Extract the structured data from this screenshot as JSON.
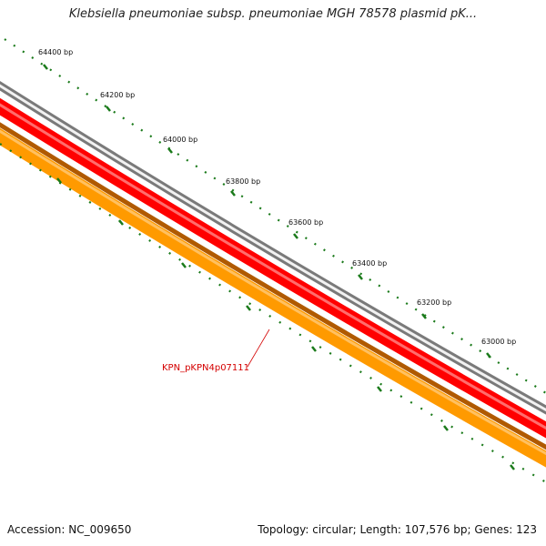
{
  "title": "Klebsiella pneumoniae subsp. pneumoniae MGH 78578 plasmid pK...",
  "ruler": {
    "tick_labels": [
      "64400 bp",
      "64200 bp",
      "64000 bp",
      "63800 bp",
      "63600 bp",
      "63400 bp",
      "63200 bp",
      "63000 bp"
    ]
  },
  "feature": {
    "label": "KPN_pKPN4p07111"
  },
  "footer": {
    "accession": "Accession: NC_009650",
    "summary": "Topology: circular; Length: 107,576 bp; Genes: 123"
  },
  "colors": {
    "backbone": "#7a7a7a",
    "feature_strand_fill": "#ff0000",
    "cds_strand_fill": "#ff9a00",
    "cds_strand_edge": "#b05a00",
    "tick_color": "#1a7a1a",
    "label_color": "#d40000"
  }
}
